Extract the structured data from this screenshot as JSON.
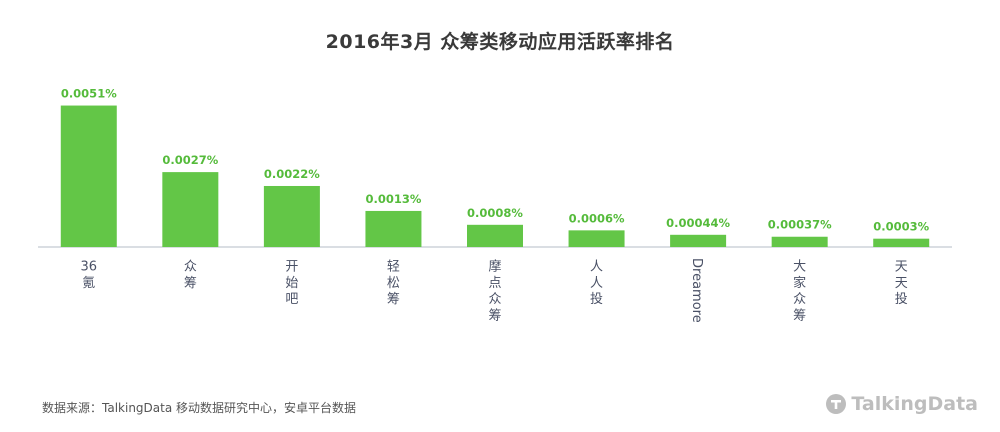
{
  "title": "2016年3月 众筹类移动应用活跃率排名",
  "source": "数据来源：TalkingData 移动数据研究中心，安卓平台数据",
  "logo": {
    "text": "TalkingData",
    "icon": "talkingdata-logo-icon"
  },
  "colors": {
    "bar": "#63c647",
    "value_label": "#55bb3b",
    "axis": "#b5bcc7",
    "category_label": "#4a5166",
    "title": "#3a3a3a"
  },
  "chart_data": {
    "type": "bar",
    "title": "2016年3月 众筹类移动应用活跃率排名",
    "xlabel": "",
    "ylabel": "",
    "grid": false,
    "legend": "none",
    "ylim": [
      0,
      0.0053
    ],
    "categories": [
      "36氪",
      "众筹",
      "开始吧",
      "轻松筹",
      "摩点众筹",
      "人人投",
      "Dreamore",
      "大家众筹",
      "天天投"
    ],
    "values": [
      0.0051,
      0.0027,
      0.0022,
      0.0013,
      0.0008,
      0.0006,
      0.00044,
      0.00037,
      0.0003
    ],
    "value_labels": [
      "0.0051%",
      "0.0027%",
      "0.0022%",
      "0.0013%",
      "0.0008%",
      "0.0006%",
      "0.00044%",
      "0.00037%",
      "0.0003%"
    ],
    "category_orientation": [
      "vertical-cjk",
      "vertical-cjk",
      "vertical-cjk",
      "vertical-cjk",
      "vertical-cjk",
      "vertical-cjk",
      "rotated-latin",
      "vertical-cjk",
      "vertical-cjk"
    ]
  }
}
